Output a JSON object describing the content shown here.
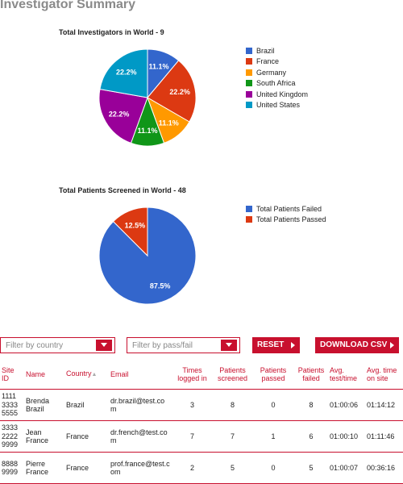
{
  "page": {
    "title": "Investigator Summary"
  },
  "chart_data": [
    {
      "type": "pie",
      "title": "Total Investigators in World - 9",
      "categories": [
        "Brazil",
        "France",
        "Germany",
        "South Africa",
        "United Kingdom",
        "United States"
      ],
      "values": [
        1,
        2,
        1,
        1,
        2,
        2
      ],
      "labels": [
        "11.1%",
        "22.2%",
        "11.1%",
        "11.1%",
        "22.2%",
        "22.2%"
      ],
      "colors": [
        "#3366cc",
        "#dc3912",
        "#ff9900",
        "#109618",
        "#990099",
        "#0099c6"
      ],
      "legend": "right"
    },
    {
      "type": "pie",
      "title": "Total Patients Screened in World - 48",
      "categories": [
        "Total Patients Failed",
        "Total Patients Passed"
      ],
      "values": [
        42,
        6
      ],
      "labels": [
        "87.5%",
        "12.5%"
      ],
      "colors": [
        "#3366cc",
        "#dc3912"
      ],
      "legend": "right"
    }
  ],
  "filters": {
    "country_placeholder": "Filter by country",
    "passfail_placeholder": "Filter by pass/fail",
    "reset_label": "RESET",
    "download_label": "DOWNLOAD CSV"
  },
  "table": {
    "headers": {
      "site_id": "Site ID",
      "name": "Name",
      "country": "Country",
      "email": "Email",
      "times_logged": "Times logged in",
      "screened": "Patients screened",
      "passed": "Patients passed",
      "failed": "Patients failed",
      "avg_test": "Avg. test/time",
      "avg_site": "Avg. time on site"
    },
    "rows": [
      {
        "site_id": "1111 3333 5555",
        "name": "Brenda Brazil",
        "country": "Brazil",
        "email": "dr.brazil@test.com",
        "times_logged": "3",
        "screened": "8",
        "passed": "0",
        "failed": "8",
        "avg_test": "01:00:06",
        "avg_site": "01:14:12"
      },
      {
        "site_id": "3333 2222 9999",
        "name": "Jean France",
        "country": "France",
        "email": "dr.french@test.com",
        "times_logged": "7",
        "screened": "7",
        "passed": "1",
        "failed": "6",
        "avg_test": "01:00:10",
        "avg_site": "01:11:46"
      },
      {
        "site_id": "8888 9999",
        "name": "Pierre France",
        "country": "France",
        "email": "prof.france@test.com",
        "times_logged": "2",
        "screened": "5",
        "passed": "0",
        "failed": "5",
        "avg_test": "01:00:07",
        "avg_site": "00:36:16"
      }
    ]
  }
}
